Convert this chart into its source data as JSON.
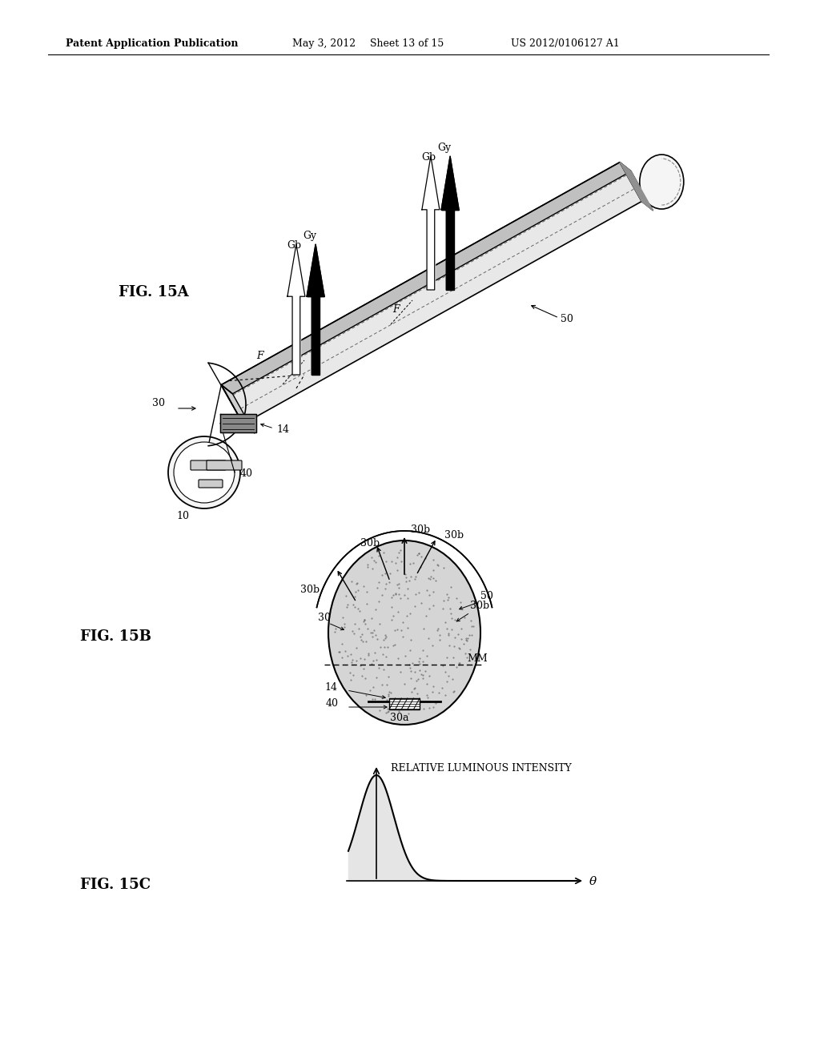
{
  "bg_color": "#ffffff",
  "header_text": "Patent Application Publication",
  "header_date": "May 3, 2012",
  "header_sheet": "Sheet 13 of 15",
  "header_patent": "US 2012/0106127 A1",
  "fig15a_label": "FIG. 15A",
  "fig15b_label": "FIG. 15B",
  "fig15c_label": "FIG. 15C",
  "Gy": "Gy",
  "Gb": "Gb",
  "F_label": "F",
  "label_30": "30",
  "label_50": "50",
  "label_14": "14",
  "label_40": "40",
  "label_10": "10",
  "label_30b": "30b",
  "label_30a": "30a",
  "label_MM": "MM",
  "label_rel": "RELATIVE LUMINOUS INTENSITY",
  "label_theta": "θ"
}
